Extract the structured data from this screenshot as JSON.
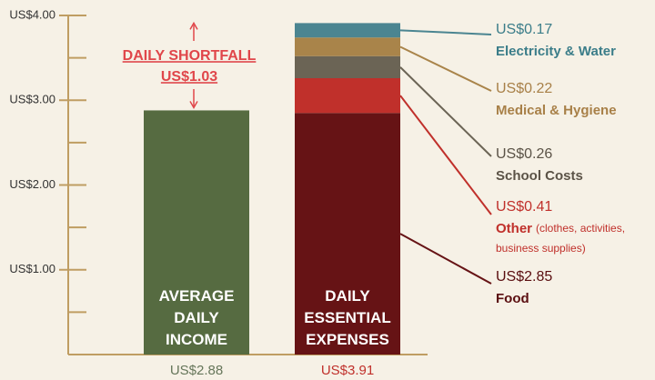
{
  "chart_data": {
    "type": "stacked_bar",
    "ylim": [
      0,
      4
    ],
    "yticks": [
      {
        "value": 1,
        "label": "US$1.00"
      },
      {
        "value": 2,
        "label": "US$2.00"
      },
      {
        "value": 3,
        "label": "US$3.00"
      },
      {
        "value": 4,
        "label": "US$4.00"
      }
    ],
    "minor_yticks": [
      0.5,
      1.5,
      2.5,
      3.5
    ],
    "bars": [
      {
        "label": "AVERAGE DAILY INCOME",
        "value": 2.88,
        "value_label": "US$2.88",
        "color": "#566b41",
        "label_color": "#66765a"
      },
      {
        "label": "DAILY ESSENTIAL EXPENSES",
        "total": 3.91,
        "total_label": "US$3.91",
        "label_color": "#c0302b",
        "segments": [
          {
            "name": "Food",
            "value": 2.85,
            "value_label": "US$2.85",
            "color": "#661315",
            "text_color": "#5a0e10"
          },
          {
            "name": "Other",
            "detail": "(clothes, activities, business supplies)",
            "value": 0.41,
            "value_label": "US$0.41",
            "color": "#c0302b",
            "text_color": "#c0302b"
          },
          {
            "name": "School Costs",
            "value": 0.26,
            "value_label": "US$0.26",
            "color": "#6b6455",
            "text_color": "#5b5347"
          },
          {
            "name": "Medical & Hygiene",
            "value": 0.22,
            "value_label": "US$0.22",
            "color": "#a9844a",
            "text_color": "#a88048"
          },
          {
            "name": "Electricity & Water",
            "value": 0.17,
            "value_label": "US$0.17",
            "color": "#4b8591",
            "text_color": "#3b7d89"
          }
        ]
      }
    ],
    "annotation": {
      "label": "DAILY SHORTFALL",
      "value": 1.03,
      "value_label": "US$1.03",
      "color": "#e0464a"
    }
  }
}
